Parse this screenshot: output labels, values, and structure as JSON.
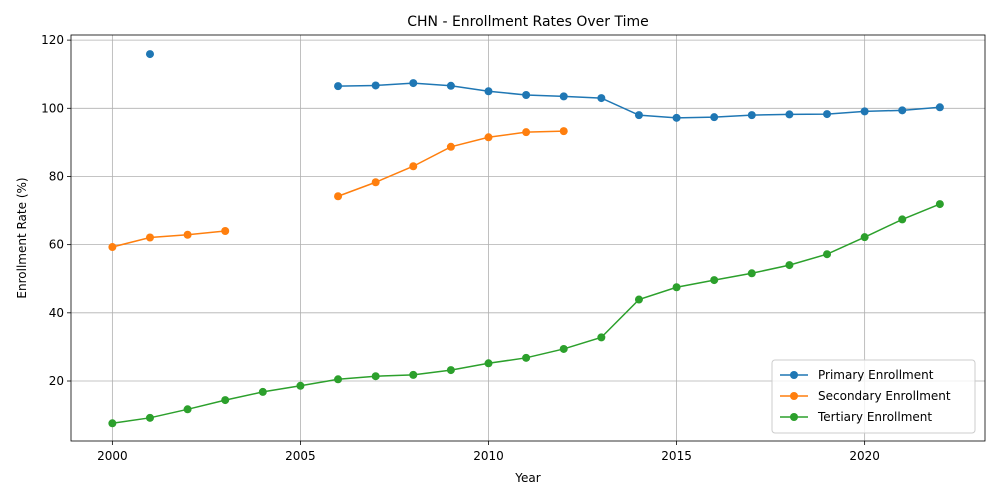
{
  "chart_data": {
    "type": "line",
    "title": "CHN - Enrollment Rates Over Time",
    "x_label": "Year",
    "y_label": "Enrollment Rate (%)",
    "x": [
      2000,
      2001,
      2002,
      2003,
      2004,
      2005,
      2006,
      2007,
      2008,
      2009,
      2010,
      2011,
      2012,
      2013,
      2014,
      2015,
      2016,
      2017,
      2018,
      2019,
      2020,
      2021,
      2022
    ],
    "series": [
      {
        "name": "Primary Enrollment",
        "color": "#1f77b4",
        "values": [
          null,
          115.9,
          null,
          null,
          null,
          null,
          106.5,
          106.7,
          107.4,
          106.6,
          105.0,
          103.9,
          103.5,
          103.0,
          98.0,
          97.2,
          97.4,
          98.0,
          98.2,
          98.3,
          99.1,
          99.4,
          100.3
        ]
      },
      {
        "name": "Secondary Enrollment",
        "color": "#ff7f0e",
        "values": [
          59.3,
          62.1,
          62.9,
          64.0,
          null,
          null,
          74.2,
          78.3,
          83.0,
          88.7,
          91.5,
          93.0,
          93.3,
          null,
          null,
          null,
          null,
          null,
          null,
          null,
          null,
          null,
          null
        ]
      },
      {
        "name": "Tertiary Enrollment",
        "color": "#2ca02c",
        "values": [
          7.6,
          9.2,
          11.7,
          14.4,
          16.8,
          18.6,
          20.5,
          21.4,
          21.8,
          23.2,
          25.2,
          26.8,
          29.4,
          32.8,
          43.9,
          47.5,
          49.6,
          51.6,
          54.0,
          57.2,
          62.2,
          67.4,
          71.9
        ]
      }
    ],
    "xlim": [
      1998.9,
      2023.2
    ],
    "xticks": [
      2000,
      2005,
      2010,
      2015,
      2020
    ],
    "ylim": [
      2.4,
      121.5
    ],
    "yticks": [
      20,
      40,
      60,
      80,
      100,
      120
    ],
    "grid": true,
    "legend": "lower right"
  }
}
